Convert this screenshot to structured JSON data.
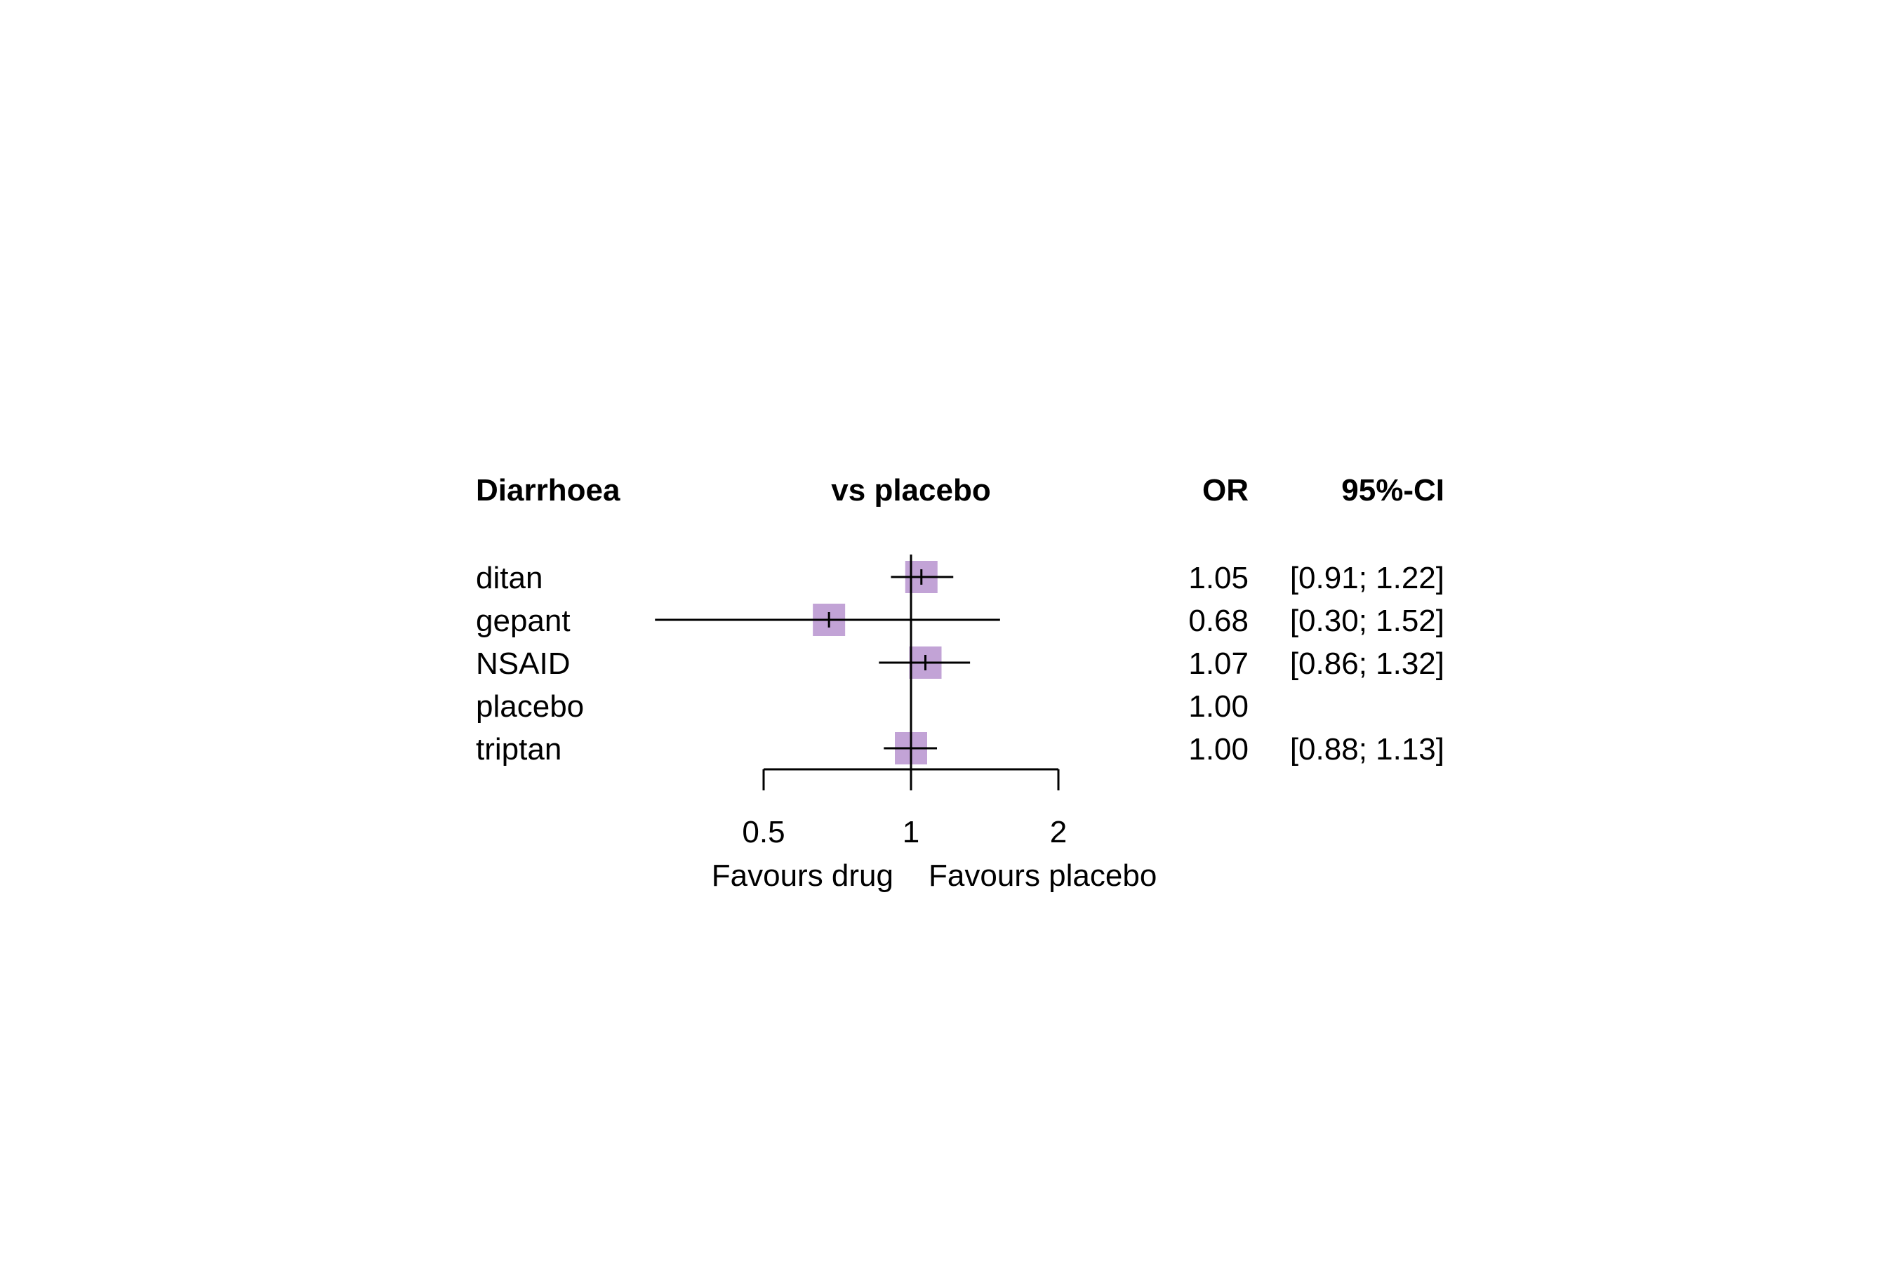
{
  "chart_data": {
    "type": "forest",
    "scale": "log",
    "reference_line": 1,
    "headers": {
      "study": "Diarrhoea",
      "comparison": "vs placebo",
      "estimate": "OR",
      "ci": "95%-CI"
    },
    "rows": [
      {
        "label": "ditan",
        "or": 1.05,
        "lower": 0.91,
        "upper": 1.22,
        "or_text": "1.05",
        "ci_text": "[0.91; 1.22]"
      },
      {
        "label": "gepant",
        "or": 0.68,
        "lower": 0.3,
        "upper": 1.52,
        "or_text": "0.68",
        "ci_text": "[0.30; 1.52]"
      },
      {
        "label": "NSAID",
        "or": 1.07,
        "lower": 0.86,
        "upper": 1.32,
        "or_text": "1.07",
        "ci_text": "[0.86; 1.32]"
      },
      {
        "label": "placebo",
        "or": 1.0,
        "lower": null,
        "upper": null,
        "or_text": "1.00",
        "ci_text": ""
      },
      {
        "label": "triptan",
        "or": 1.0,
        "lower": 0.88,
        "upper": 1.13,
        "or_text": "1.00",
        "ci_text": "[0.88; 1.13]"
      }
    ],
    "x_ticks": [
      0.5,
      1,
      2
    ],
    "x_tick_labels": [
      "0.5",
      "1",
      "2"
    ],
    "xlim": [
      0.5,
      2
    ],
    "favours_left": "Favours drug",
    "favours_right": "Favours placebo",
    "colors": {
      "marker": "#c2a3d6",
      "line": "#000000"
    }
  }
}
